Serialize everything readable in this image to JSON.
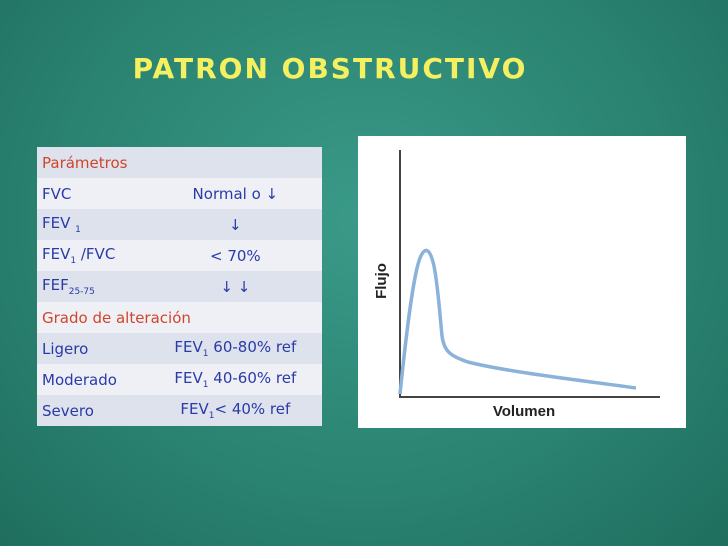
{
  "title": "PATRON OBSTRUCTIVO",
  "table": {
    "rows": [
      {
        "section": "Parámetros"
      },
      {
        "cells": [
          [
            {
              "text": "FVC"
            }
          ],
          [
            {
              "text": "Normal o ↓"
            }
          ]
        ]
      },
      {
        "cells": [
          [
            {
              "text": "FEV "
            },
            {
              "sub": "1"
            }
          ],
          [
            {
              "text": "↓"
            }
          ]
        ]
      },
      {
        "cells": [
          [
            {
              "text": "FEV"
            },
            {
              "sub": "1"
            },
            {
              "text": " /FVC"
            }
          ],
          [
            {
              "text": "< 70%"
            }
          ]
        ]
      },
      {
        "cells": [
          [
            {
              "text": "FEF"
            },
            {
              "sub": "25-75"
            }
          ],
          [
            {
              "text": "↓ ↓"
            }
          ]
        ]
      },
      {
        "section": "Grado de alteración"
      },
      {
        "cells": [
          [
            {
              "text": "Ligero"
            }
          ],
          [
            {
              "text": "FEV"
            },
            {
              "sub": "1"
            },
            {
              "text": " 60-80% ref"
            }
          ]
        ]
      },
      {
        "cells": [
          [
            {
              "text": "Moderado"
            }
          ],
          [
            {
              "text": "FEV"
            },
            {
              "sub": "1"
            },
            {
              "text": " 40-60% ref"
            }
          ]
        ]
      },
      {
        "cells": [
          [
            {
              "text": "Severo"
            }
          ],
          [
            {
              "text": "FEV"
            },
            {
              "sub": "1"
            },
            {
              "text": "< 40% ref"
            }
          ]
        ]
      }
    ]
  },
  "figure": {
    "y_label": "Flujo",
    "x_label": "Volumen"
  }
}
